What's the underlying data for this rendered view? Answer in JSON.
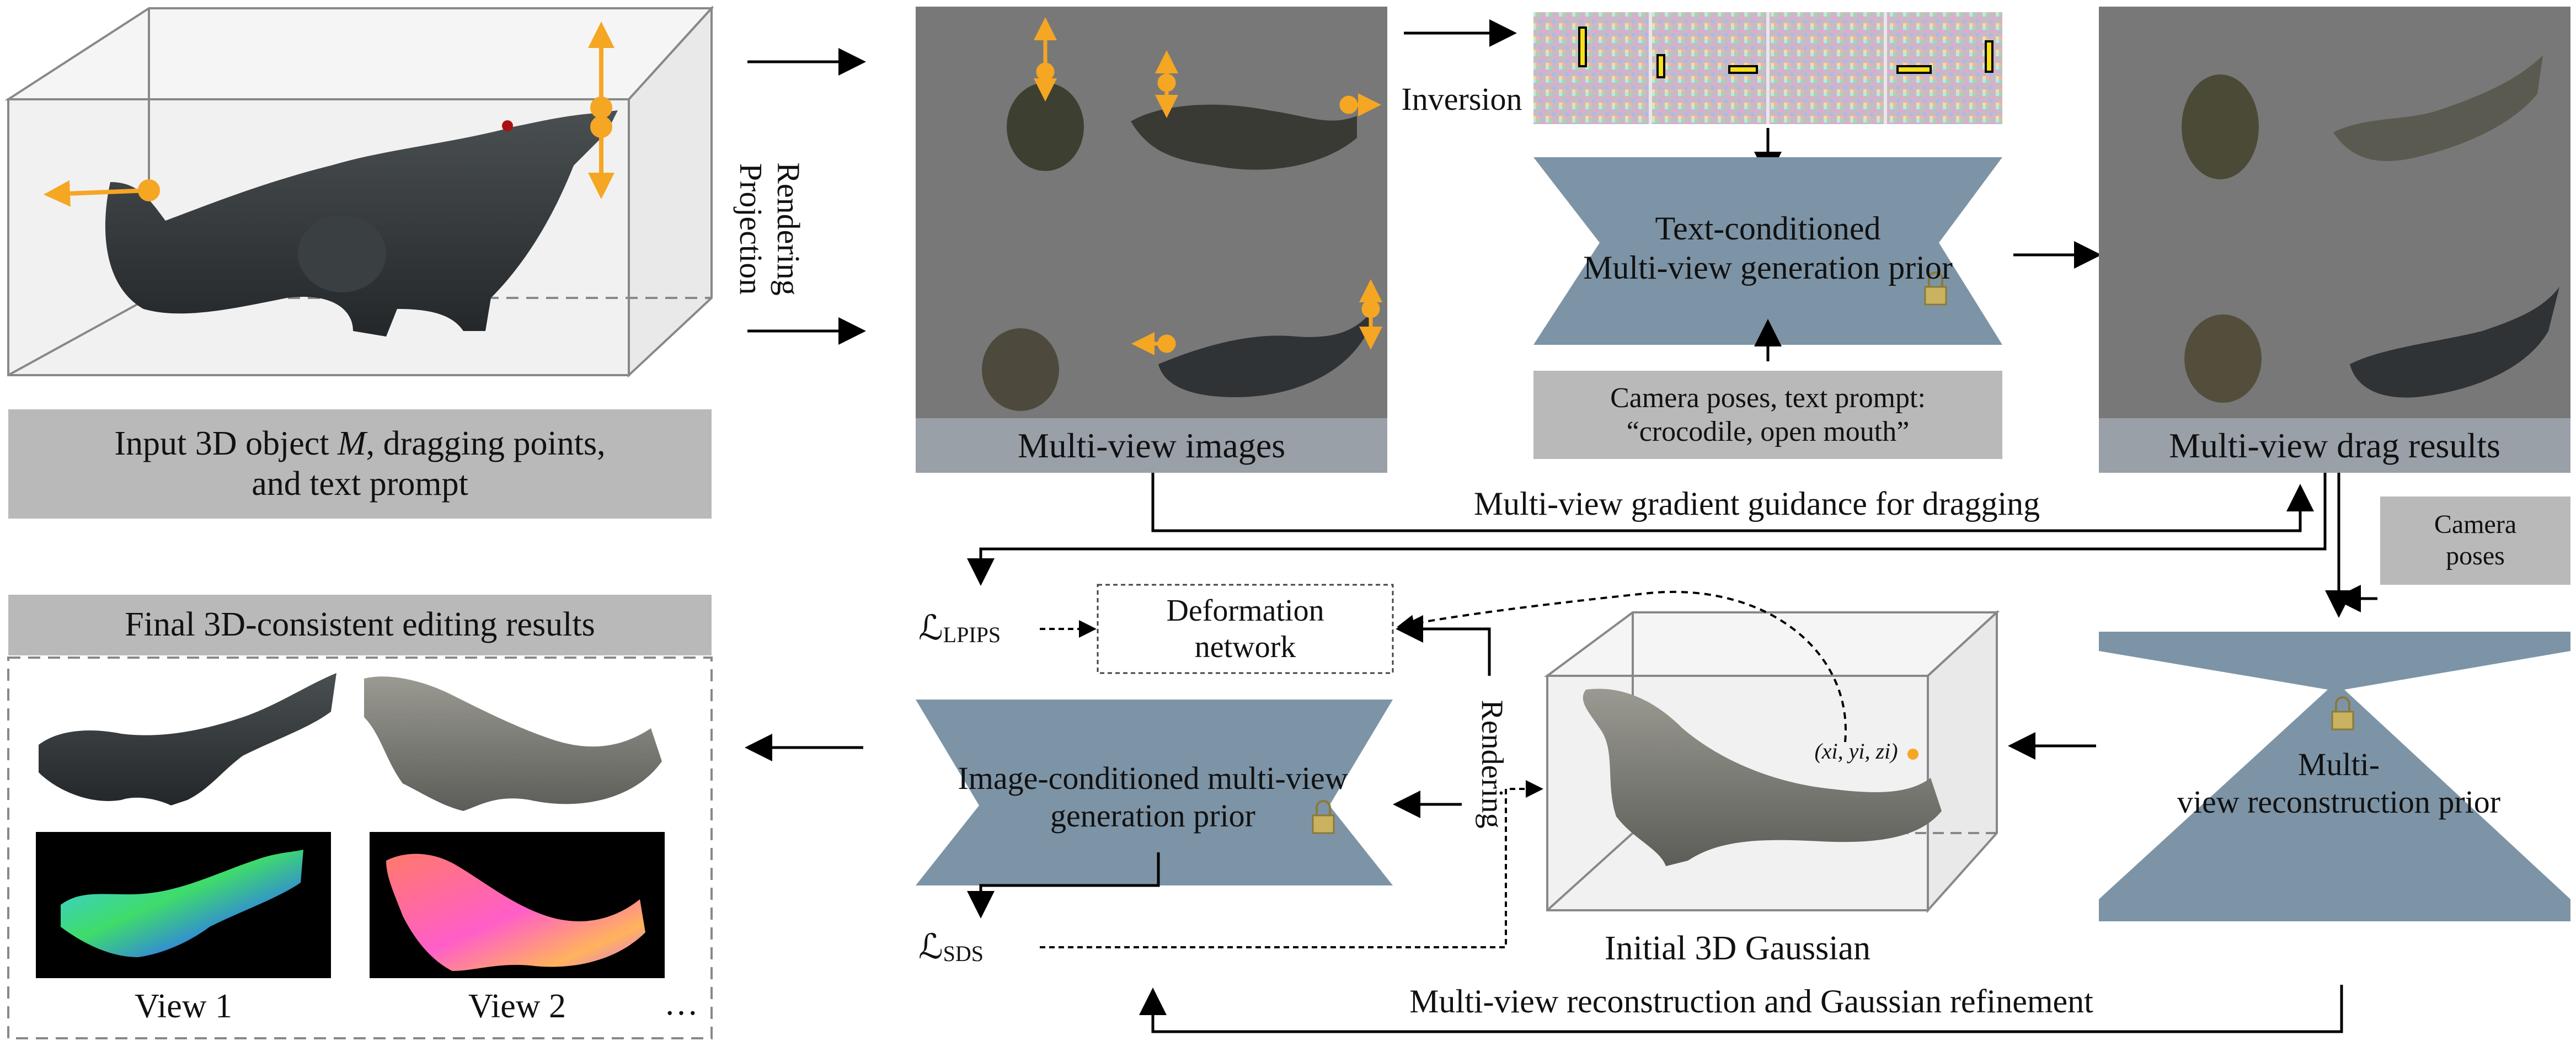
{
  "input_caption": {
    "line1_prefix": "Input 3D object ",
    "symbol": "M",
    "line1_suffix": ", dragging points,",
    "line2": "and text prompt"
  },
  "rendering_projection": {
    "word1": "Rendering",
    "word2": "Projection"
  },
  "multiview_images_caption": "Multi-view images",
  "inversion_label": "Inversion",
  "text_prior": {
    "line1": "Text-conditioned",
    "line2": "Multi-view generation prior"
  },
  "camera_text_prompt": {
    "line1": "Camera poses, text prompt:",
    "line2": "“crocodile, open mouth”"
  },
  "drag_results_caption": "Multi-view drag results",
  "gradient_guidance_label": "Multi-view gradient guidance for dragging",
  "camera_poses": {
    "line1": "Camera",
    "line2": "poses"
  },
  "final_results_caption": "Final 3D-consistent editing results",
  "loss_lpips": {
    "symbol": "ℒ",
    "subscript": "LPIPS"
  },
  "loss_sds": {
    "symbol": "ℒ",
    "subscript": "SDS"
  },
  "deformation_network": {
    "line1": "Deformation",
    "line2": "network"
  },
  "rendering_vertical": "Rendering",
  "image_prior": {
    "line1": "Image-conditioned multi-view",
    "line2": "generation prior"
  },
  "gaussian_point_label": "(xi, yi, zi)",
  "initial_gaussian_caption": "Initial 3D Gaussian",
  "reconstruction_prior": {
    "line1": "Multi-",
    "line2": "view reconstruction prior"
  },
  "refinement_label": "Multi-view reconstruction and Gaussian refinement",
  "view1_label": "View 1",
  "view2_label": "View 2",
  "ellipsis": "…",
  "colors": {
    "drag_arrow": "#f5a623",
    "prior_fill": "#7d94a6",
    "panel_gray": "#787878",
    "caption_gray": "#b9b9b9",
    "croc_body": "#2f3336"
  }
}
